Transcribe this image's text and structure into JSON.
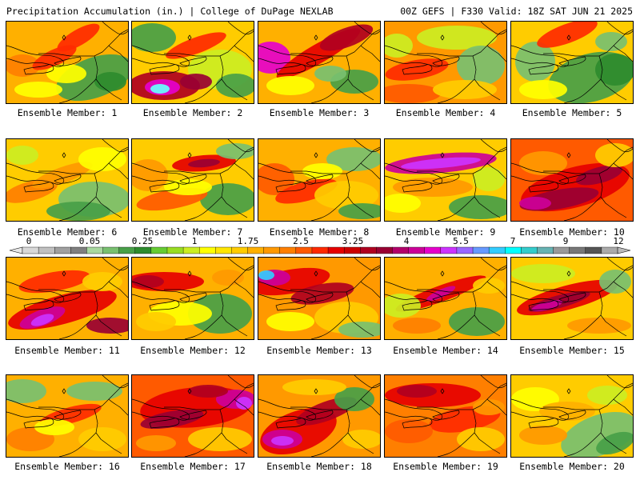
{
  "header": {
    "left_title": "Precipitation Accumulation (in.) | College of DuPage NEXLAB",
    "right_title": "00Z GEFS | F330 Valid: 18Z SAT JUN 21 2025"
  },
  "members": [
    {
      "label": "Ensemble Member: 1"
    },
    {
      "label": "Ensemble Member: 2"
    },
    {
      "label": "Ensemble Member: 3"
    },
    {
      "label": "Ensemble Member: 4"
    },
    {
      "label": "Ensemble Member: 5"
    },
    {
      "label": "Ensemble Member: 6"
    },
    {
      "label": "Ensemble Member: 7"
    },
    {
      "label": "Ensemble Member: 8"
    },
    {
      "label": "Ensemble Member: 9"
    },
    {
      "label": "Ensemble Member: 10"
    },
    {
      "label": "Ensemble Member: 11"
    },
    {
      "label": "Ensemble Member: 12"
    },
    {
      "label": "Ensemble Member: 13"
    },
    {
      "label": "Ensemble Member: 14"
    },
    {
      "label": "Ensemble Member: 15"
    },
    {
      "label": "Ensemble Member: 16"
    },
    {
      "label": "Ensemble Member: 17"
    },
    {
      "label": "Ensemble Member: 18"
    },
    {
      "label": "Ensemble Member: 19"
    },
    {
      "label": "Ensemble Member: 20"
    }
  ],
  "colorbar": {
    "tick_labels": [
      "0",
      "0.05",
      "0.25",
      "1",
      "1.75",
      "2.5",
      "3.25",
      "4",
      "5.5",
      "7",
      "9",
      "12"
    ],
    "colors": [
      "#d8d8d8",
      "#c0c0c0",
      "#a0a0a0",
      "#7f7f7f",
      "#a8d8a0",
      "#78c070",
      "#48a048",
      "#2e8b2e",
      "#66cc33",
      "#99dd22",
      "#ccee22",
      "#ffff00",
      "#ffe600",
      "#ffcc00",
      "#ffb000",
      "#ff9900",
      "#ff7f00",
      "#ff5a00",
      "#ff2a00",
      "#e60000",
      "#cc0000",
      "#b00020",
      "#990033",
      "#b3006b",
      "#cc0099",
      "#e600cc",
      "#cc33ff",
      "#9966ff",
      "#6699ff",
      "#33ccff",
      "#00ffff",
      "#33cccc",
      "#66b3b3",
      "#999999",
      "#777777",
      "#555555",
      "#aaaaaa"
    ]
  }
}
